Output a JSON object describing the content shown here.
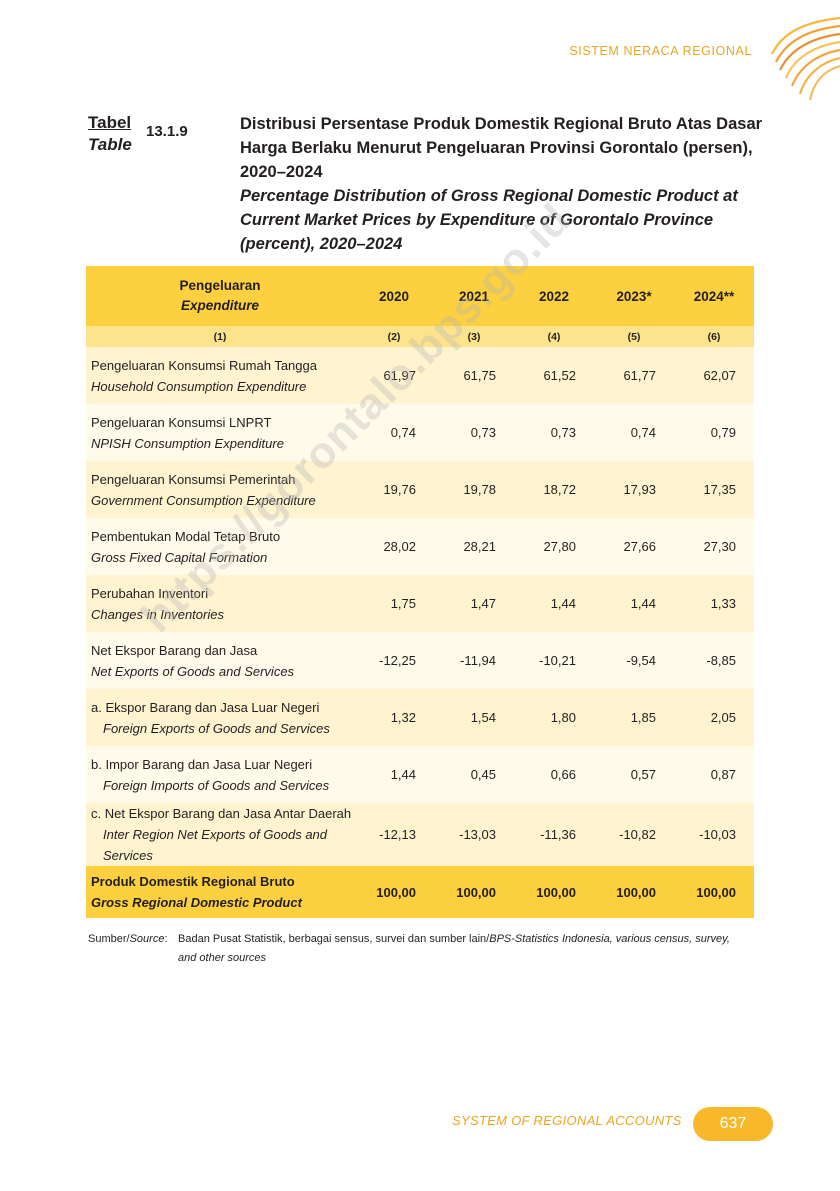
{
  "header": {
    "section_label": "SISTEM NERACA REGIONAL"
  },
  "table_label": {
    "id": "Tabel",
    "en": "Table",
    "number": "13.1.9"
  },
  "title": {
    "id": "Distribusi Persentase Produk Domestik Regional Bruto Atas Dasar Harga Berlaku Menurut Pengeluaran Provinsi Gorontalo (persen), 2020–2024",
    "en": "Percentage Distribution of Gross Regional Domestic Product at Current Market Prices by Expenditure of Gorontalo Province (percent), 2020–2024"
  },
  "columns": {
    "label_id": "Pengeluaran",
    "label_en": "Expenditure",
    "years": [
      "2020",
      "2021",
      "2022",
      "2023*",
      "2024**"
    ],
    "numbers": [
      "(1)",
      "(2)",
      "(3)",
      "(4)",
      "(5)",
      "(6)"
    ]
  },
  "rows": [
    {
      "id": "Pengeluaran Konsumsi Rumah Tangga",
      "en": "Household Consumption Expenditure",
      "values": [
        "61,97",
        "61,75",
        "61,52",
        "61,77",
        "62,07"
      ]
    },
    {
      "id": "Pengeluaran Konsumsi LNPRT",
      "en": "NPISH Consumption Expenditure",
      "values": [
        "0,74",
        "0,73",
        "0,73",
        "0,74",
        "0,79"
      ]
    },
    {
      "id": "Pengeluaran Konsumsi Pemerintah",
      "en": "Government Consumption Expenditure",
      "values": [
        "19,76",
        "19,78",
        "18,72",
        "17,93",
        "17,35"
      ]
    },
    {
      "id": "Pembentukan Modal Tetap Bruto",
      "en": "Gross Fixed Capital Formation",
      "values": [
        "28,02",
        "28,21",
        "27,80",
        "27,66",
        "27,30"
      ]
    },
    {
      "id": "Perubahan Inventori",
      "en": "Changes in Inventories",
      "values": [
        "1,75",
        "1,47",
        "1,44",
        "1,44",
        "1,33"
      ]
    },
    {
      "id": "Net Ekspor Barang dan Jasa",
      "en": "Net Exports of Goods and Services",
      "values": [
        "-12,25",
        "-11,94",
        "-10,21",
        "-9,54",
        "-8,85"
      ]
    },
    {
      "id": "a. Ekspor Barang dan Jasa Luar Negeri",
      "en": "Foreign Exports of Goods and Services",
      "values": [
        "1,32",
        "1,54",
        "1,80",
        "1,85",
        "2,05"
      ]
    },
    {
      "id": "b. Impor Barang dan Jasa Luar Negeri",
      "en": "Foreign Imports of Goods and Services",
      "values": [
        "1,44",
        "0,45",
        "0,66",
        "0,57",
        "0,87"
      ]
    },
    {
      "id": "c. Net Ekspor Barang dan Jasa Antar Daerah",
      "en": "Inter Region Net Exports of Goods and Services",
      "values": [
        "-12,13",
        "-13,03",
        "-11,36",
        "-10,82",
        "-10,03"
      ]
    }
  ],
  "total": {
    "id": "Produk Domestik Regional Bruto",
    "en": "Gross Regional Domestic Product",
    "values": [
      "100,00",
      "100,00",
      "100,00",
      "100,00",
      "100,00"
    ]
  },
  "source": {
    "label_id": "Sumber/",
    "label_en": "Source",
    "text_id": "Badan Pusat Statistik, berbagai sensus, survei dan sumber lain/",
    "text_en": "BPS-Statistics Indonesia, various census, survey, and other sources"
  },
  "watermark": "https://gorontalo.bps.go.id",
  "footer": {
    "section_label": "SYSTEM OF REGIONAL ACCOUNTS",
    "page_number": "637"
  },
  "colors": {
    "accent": "#fcd03f",
    "accent_light": "#fde38c",
    "orange_text": "#e8a623",
    "pill": "#f7b929"
  }
}
